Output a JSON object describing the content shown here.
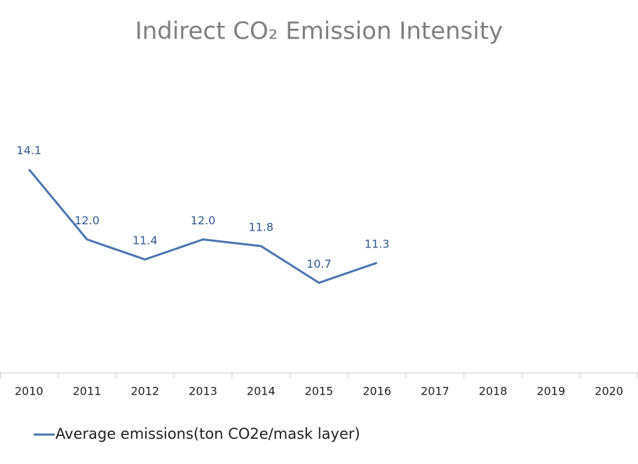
{
  "chart_data": {
    "type": "line",
    "title": "Indirect CO₂ Emission Intensity",
    "categories": [
      "2010",
      "2011",
      "2012",
      "2013",
      "2014",
      "2015",
      "2016",
      "2017",
      "2018",
      "2019",
      "2020"
    ],
    "series": [
      {
        "name": "Average emissions(ton CO2e/mask layer)",
        "color": "#4a76b0",
        "values": [
          14.1,
          12.0,
          11.4,
          12.0,
          11.8,
          10.7,
          11.3,
          null,
          null,
          null,
          null
        ],
        "value_labels": [
          "14.1",
          "12.0",
          "11.4",
          "12.0",
          "11.8",
          "10.7",
          "11.3",
          null,
          null,
          null,
          null
        ]
      }
    ],
    "ylim": [
      8,
      18
    ],
    "legend": "bottom-left"
  }
}
